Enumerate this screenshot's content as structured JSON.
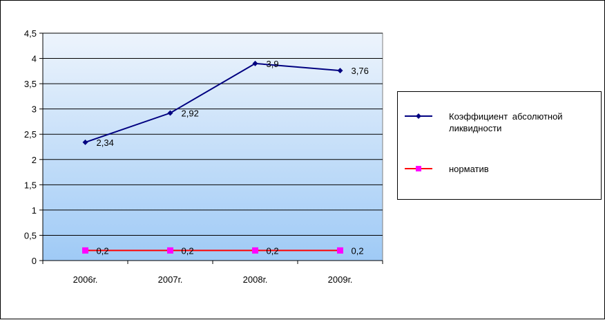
{
  "colors": {
    "series1_line": "#000080",
    "series2_line": "#FF0000",
    "series2_marker": "#FF00FF",
    "plot_bg_top": "#EDF4FC",
    "plot_bg_bottom": "#9FCAF6",
    "gridline": "#000000"
  },
  "chart_data": {
    "type": "line",
    "title": "",
    "xlabel": "",
    "ylabel": "",
    "categories": [
      "2006г.",
      "2007г.",
      "2008г.",
      "2009г."
    ],
    "ylim": [
      0,
      4.5
    ],
    "y_ticks": [
      "0",
      "0,5",
      "1",
      "1,5",
      "2",
      "2,5",
      "3",
      "3,5",
      "4",
      "4,5"
    ],
    "grid": true,
    "legend_position": "right",
    "series": [
      {
        "name": "Коэффициент абсолютной ликвидности",
        "values": [
          2.34,
          2.92,
          3.9,
          3.76
        ],
        "labels": [
          "2,34",
          "2,92",
          "3,9",
          "3,76"
        ],
        "marker": "diamond",
        "color": "#000080"
      },
      {
        "name": "норматив",
        "values": [
          0.2,
          0.2,
          0.2,
          0.2
        ],
        "labels": [
          "0,2",
          "0,2",
          "0,2",
          "0,2"
        ],
        "marker": "square",
        "color": "#FF0000",
        "marker_color": "#FF00FF"
      }
    ]
  }
}
